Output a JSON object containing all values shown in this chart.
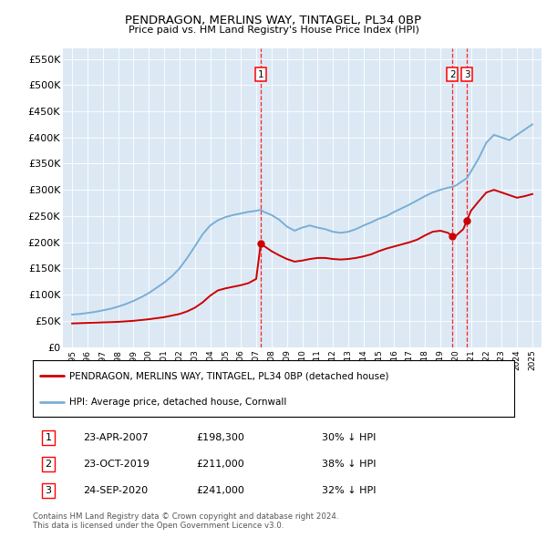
{
  "title": "PENDRAGON, MERLINS WAY, TINTAGEL, PL34 0BP",
  "subtitle": "Price paid vs. HM Land Registry's House Price Index (HPI)",
  "ylim": [
    0,
    570000
  ],
  "yticks": [
    0,
    50000,
    100000,
    150000,
    200000,
    250000,
    300000,
    350000,
    400000,
    450000,
    500000,
    550000
  ],
  "ytick_labels": [
    "£0",
    "£50K",
    "£100K",
    "£150K",
    "£200K",
    "£250K",
    "£300K",
    "£350K",
    "£400K",
    "£450K",
    "£500K",
    "£550K"
  ],
  "plot_bg": "#dce9f5",
  "red_color": "#cc0000",
  "blue_color": "#7aaed4",
  "sale_year_floats": [
    2007.3,
    2019.8,
    2020.73
  ],
  "sale_prices": [
    198300,
    211000,
    241000
  ],
  "sale_labels": [
    "1",
    "2",
    "3"
  ],
  "legend_red": "PENDRAGON, MERLINS WAY, TINTAGEL, PL34 0BP (detached house)",
  "legend_blue": "HPI: Average price, detached house, Cornwall",
  "table_rows": [
    [
      "1",
      "23-APR-2007",
      "£198,300",
      "30% ↓ HPI"
    ],
    [
      "2",
      "23-OCT-2019",
      "£211,000",
      "38% ↓ HPI"
    ],
    [
      "3",
      "24-SEP-2020",
      "£241,000",
      "32% ↓ HPI"
    ]
  ],
  "footnote": "Contains HM Land Registry data © Crown copyright and database right 2024.\nThis data is licensed under the Open Government Licence v3.0.",
  "hpi_x": [
    1995.0,
    1995.5,
    1996.0,
    1996.5,
    1997.0,
    1997.5,
    1998.0,
    1998.5,
    1999.0,
    1999.5,
    2000.0,
    2000.5,
    2001.0,
    2001.5,
    2002.0,
    2002.5,
    2003.0,
    2003.5,
    2004.0,
    2004.5,
    2005.0,
    2005.5,
    2006.0,
    2006.5,
    2007.0,
    2007.3,
    2007.5,
    2008.0,
    2008.5,
    2009.0,
    2009.5,
    2010.0,
    2010.5,
    2011.0,
    2011.5,
    2012.0,
    2012.5,
    2013.0,
    2013.5,
    2014.0,
    2014.5,
    2015.0,
    2015.5,
    2016.0,
    2016.5,
    2017.0,
    2017.5,
    2018.0,
    2018.5,
    2019.0,
    2019.5,
    2019.8,
    2020.0,
    2020.5,
    2020.73,
    2021.0,
    2021.5,
    2022.0,
    2022.5,
    2023.0,
    2023.5,
    2024.0,
    2024.5,
    2025.0
  ],
  "hpi_y": [
    62000,
    63000,
    65000,
    67000,
    70000,
    73000,
    77000,
    82000,
    88000,
    95000,
    103000,
    113000,
    123000,
    135000,
    150000,
    170000,
    192000,
    215000,
    232000,
    242000,
    248000,
    252000,
    255000,
    258000,
    260000,
    262000,
    258000,
    252000,
    243000,
    230000,
    222000,
    228000,
    232000,
    228000,
    225000,
    220000,
    218000,
    220000,
    225000,
    232000,
    238000,
    245000,
    250000,
    258000,
    265000,
    272000,
    280000,
    288000,
    295000,
    300000,
    304000,
    306000,
    308000,
    318000,
    322000,
    335000,
    360000,
    390000,
    405000,
    400000,
    395000,
    405000,
    415000,
    425000
  ],
  "red_x": [
    1995.0,
    1995.5,
    1996.0,
    1996.5,
    1997.0,
    1997.5,
    1998.0,
    1998.5,
    1999.0,
    1999.5,
    2000.0,
    2000.5,
    2001.0,
    2001.5,
    2002.0,
    2002.5,
    2003.0,
    2003.5,
    2004.0,
    2004.5,
    2005.0,
    2005.5,
    2006.0,
    2006.5,
    2007.0,
    2007.3,
    2007.5,
    2008.0,
    2008.5,
    2009.0,
    2009.5,
    2010.0,
    2010.5,
    2011.0,
    2011.5,
    2012.0,
    2012.5,
    2013.0,
    2013.5,
    2014.0,
    2014.5,
    2015.0,
    2015.5,
    2016.0,
    2016.5,
    2017.0,
    2017.5,
    2018.0,
    2018.5,
    2019.0,
    2019.5,
    2019.8,
    2020.0,
    2020.5,
    2020.73,
    2021.0,
    2021.5,
    2022.0,
    2022.5,
    2023.0,
    2023.5,
    2024.0,
    2024.5,
    2025.0
  ],
  "red_y": [
    45000,
    45500,
    46000,
    46500,
    47000,
    47500,
    48000,
    49000,
    50000,
    51500,
    53000,
    55000,
    57000,
    60000,
    63000,
    68000,
    75000,
    85000,
    98000,
    108000,
    112000,
    115000,
    118000,
    122000,
    130000,
    198300,
    193000,
    183000,
    175000,
    168000,
    163000,
    165000,
    168000,
    170000,
    170000,
    168000,
    167000,
    168000,
    170000,
    173000,
    177000,
    183000,
    188000,
    192000,
    196000,
    200000,
    205000,
    213000,
    220000,
    222000,
    218000,
    211000,
    212000,
    225000,
    241000,
    260000,
    278000,
    295000,
    300000,
    295000,
    290000,
    285000,
    288000,
    292000
  ]
}
